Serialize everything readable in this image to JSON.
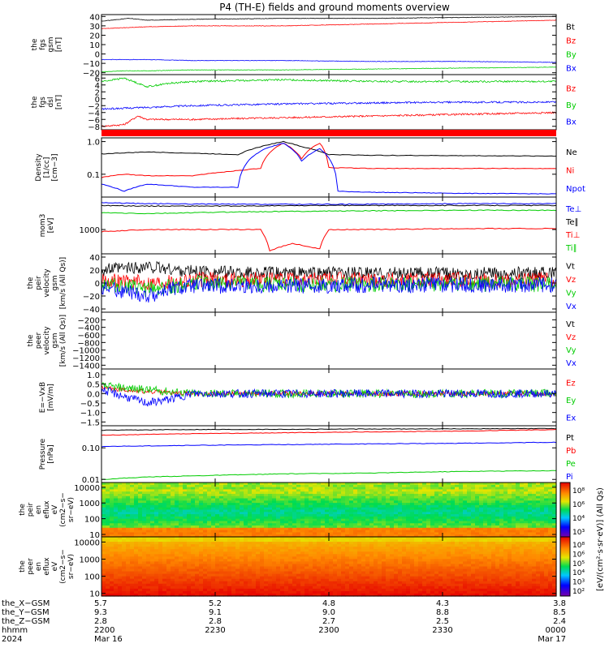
{
  "title": "P4 (TH-E) fields and ground moments overview",
  "colors": {
    "black": "#000000",
    "red": "#ff0000",
    "green": "#00cc00",
    "blue": "#0000ff"
  },
  "chart_data": [
    {
      "id": "fgs-gsm",
      "type": "line",
      "ylabel_lines": [
        "the",
        "fgs",
        "gsm",
        "[nT]"
      ],
      "ylim": [
        -22,
        42
      ],
      "yticks": [
        "40",
        "30",
        "20",
        "10",
        "0",
        "−10",
        "−20"
      ],
      "ytick_values": [
        40,
        30,
        20,
        10,
        0,
        -10,
        -20
      ],
      "series": [
        {
          "name": "Bt",
          "color": "black",
          "x": [
            0,
            0.02,
            0.06,
            0.1,
            0.2,
            0.4,
            0.6,
            0.8,
            1.0
          ],
          "y": [
            35,
            36,
            38,
            36,
            37,
            38,
            38,
            39,
            40
          ]
        },
        {
          "name": "Bz",
          "color": "red",
          "x": [
            0,
            0.05,
            0.1,
            0.2,
            0.4,
            0.6,
            0.8,
            1.0
          ],
          "y": [
            27,
            28,
            29,
            30,
            30,
            32,
            34,
            36
          ]
        },
        {
          "name": "By",
          "color": "green",
          "x": [
            0,
            0.05,
            0.1,
            0.2,
            0.4,
            0.6,
            0.8,
            1.0
          ],
          "y": [
            -19,
            -18,
            -18,
            -17,
            -17,
            -16,
            -15,
            -14
          ]
        },
        {
          "name": "Bx",
          "color": "blue",
          "x": [
            0,
            0.1,
            0.2,
            0.4,
            0.6,
            0.8,
            1.0
          ],
          "y": [
            -6,
            -6,
            -7,
            -7,
            -8,
            -8,
            -9
          ]
        }
      ]
    },
    {
      "id": "fgs-dsl",
      "type": "line",
      "ylabel_lines": [
        "the",
        "fgs",
        "dsl",
        "[nT]"
      ],
      "ylim": [
        -9,
        7
      ],
      "yticks": [
        "6",
        "4",
        "2",
        "0",
        "−2",
        "−4",
        "−6",
        "−8"
      ],
      "ytick_values": [
        6,
        4,
        2,
        0,
        -2,
        -4,
        -6,
        -8
      ],
      "series": [
        {
          "name": "Bz",
          "color": "red",
          "x": [
            0,
            0.05,
            0.08,
            0.1,
            0.2,
            0.4,
            0.6,
            0.8,
            1.0
          ],
          "y": [
            -8,
            -7.5,
            -5,
            -6,
            -6,
            -5.5,
            -5,
            -4.5,
            -4
          ]
        },
        {
          "name": "By",
          "color": "green",
          "x": [
            0,
            0.05,
            0.1,
            0.15,
            0.2,
            0.4,
            0.6,
            0.8,
            1.0
          ],
          "y": [
            5,
            6,
            3.5,
            4.5,
            5,
            5.5,
            5,
            5,
            5
          ]
        },
        {
          "name": "Bx",
          "color": "blue",
          "x": [
            0,
            0.1,
            0.2,
            0.4,
            0.6,
            0.8,
            1.0
          ],
          "y": [
            -3,
            -2.5,
            -2,
            -1.5,
            -1.2,
            -1,
            -1
          ]
        }
      ]
    },
    {
      "id": "density",
      "type": "line",
      "log_y": true,
      "ylabel_lines": [
        "Density",
        "[1/cc]",
        "[cm−3]"
      ],
      "ylim": [
        0.02,
        1.3
      ],
      "yticks": [
        "1.0",
        "0.1"
      ],
      "ytick_values": [
        1.0,
        0.1
      ],
      "series": [
        {
          "name": "Ne",
          "color": "black",
          "x": [
            0,
            0.1,
            0.2,
            0.3,
            0.35,
            0.4,
            0.44,
            0.48,
            0.5,
            0.6,
            0.8,
            1.0
          ],
          "y": [
            0.42,
            0.48,
            0.44,
            0.4,
            0.7,
            1.0,
            0.7,
            0.5,
            0.4,
            0.38,
            0.37,
            0.36
          ]
        },
        {
          "name": "Ni",
          "color": "red",
          "x": [
            0,
            0.05,
            0.1,
            0.2,
            0.35,
            0.4,
            0.44,
            0.48,
            0.5,
            0.6,
            0.8,
            1.0
          ],
          "y": [
            0.08,
            0.1,
            0.09,
            0.09,
            0.15,
            0.9,
            0.3,
            0.9,
            0.16,
            0.15,
            0.15,
            0.15
          ]
        },
        {
          "name": "Npot",
          "color": "blue",
          "x": [
            0,
            0.05,
            0.1,
            0.2,
            0.3,
            0.36,
            0.4,
            0.44,
            0.48,
            0.52,
            0.6,
            0.8,
            1.0
          ],
          "y": [
            0.05,
            0.03,
            0.05,
            0.04,
            0.04,
            0.6,
            0.9,
            0.25,
            0.6,
            0.03,
            0.028,
            0.026,
            0.025
          ]
        }
      ]
    },
    {
      "id": "temperature",
      "type": "line",
      "log_y": true,
      "ylabel_lines": [
        "mom3",
        "[eV]"
      ],
      "ylim": [
        300,
        5000
      ],
      "yticks": [
        "1000"
      ],
      "ytick_values": [
        1000
      ],
      "series": [
        {
          "name": "Te⊥",
          "color": "blue",
          "x": [
            0,
            0.1,
            0.3,
            0.5,
            0.8,
            1.0
          ],
          "y": [
            3800,
            3600,
            3500,
            3500,
            3600,
            3600
          ]
        },
        {
          "name": "Te∥",
          "color": "black",
          "x": [
            0,
            0.1,
            0.3,
            0.5,
            0.8,
            1.0
          ],
          "y": [
            3300,
            3200,
            3200,
            3300,
            3300,
            3300
          ]
        },
        {
          "name": "Ti⊥",
          "color": "red",
          "x": [
            0,
            0.1,
            0.35,
            0.37,
            0.42,
            0.48,
            0.5,
            0.6,
            0.8,
            1.0
          ],
          "y": [
            900,
            1000,
            1000,
            350,
            500,
            380,
            1000,
            1000,
            1050,
            1050
          ]
        },
        {
          "name": "Ti∥",
          "color": "green",
          "x": [
            0,
            0.1,
            0.3,
            0.5,
            0.8,
            1.0
          ],
          "y": [
            2300,
            2200,
            2400,
            2500,
            2600,
            2600
          ]
        }
      ]
    },
    {
      "id": "velocity-gsm",
      "type": "line",
      "ylabel_lines": [
        "the",
        "peir",
        "velocity",
        "gsm",
        "[km/s (All Qs)]"
      ],
      "ylim": [
        -45,
        45
      ],
      "yticks": [
        "40",
        "20",
        "0",
        "−20",
        "−40"
      ],
      "ytick_values": [
        40,
        20,
        0,
        -20,
        -40
      ],
      "series": [
        {
          "name": "Vt",
          "color": "black",
          "x": [
            0,
            0.1,
            0.2,
            0.4,
            0.6,
            0.8,
            1.0
          ],
          "y": [
            20,
            25,
            18,
            15,
            15,
            15,
            15
          ]
        },
        {
          "name": "Vz",
          "color": "red",
          "x": [
            0,
            0.1,
            0.2,
            0.4,
            0.6,
            0.8,
            1.0
          ],
          "y": [
            5,
            0,
            5,
            5,
            5,
            5,
            5
          ]
        },
        {
          "name": "Vy",
          "color": "green",
          "x": [
            0,
            0.1,
            0.2,
            0.4,
            0.6,
            0.8,
            1.0
          ],
          "y": [
            0,
            -10,
            0,
            -2,
            -3,
            -2,
            -2
          ]
        },
        {
          "name": "Vx",
          "color": "blue",
          "x": [
            0,
            0.1,
            0.15,
            0.2,
            0.4,
            0.6,
            0.8,
            1.0
          ],
          "y": [
            -5,
            -20,
            -10,
            -5,
            -5,
            -3,
            -3,
            -3
          ]
        }
      ]
    },
    {
      "id": "velocity-empty",
      "type": "line",
      "ylabel_lines": [
        "the",
        "peer",
        "velocity",
        "gsm",
        "[km/s (All Qs)]"
      ],
      "ylim": [
        -1500,
        0
      ],
      "yticks": [
        "−200",
        "−400",
        "−600",
        "−800",
        "−1000",
        "−1200",
        "−1400"
      ],
      "ytick_values": [
        -200,
        -400,
        -600,
        -800,
        -1000,
        -1200,
        -1400
      ],
      "series": [
        {
          "name": "Vt",
          "color": "black",
          "x": [],
          "y": []
        },
        {
          "name": "Vz",
          "color": "red",
          "x": [],
          "y": []
        },
        {
          "name": "Vy",
          "color": "green",
          "x": [],
          "y": []
        },
        {
          "name": "Vx",
          "color": "blue",
          "x": [],
          "y": []
        }
      ]
    },
    {
      "id": "efield",
      "type": "line",
      "ylabel_lines": [
        "E=−VxB",
        "[mV/m]"
      ],
      "ylim": [
        -1.7,
        1.3
      ],
      "yticks": [
        "1.0",
        "0.5",
        "0.0",
        "−0.5",
        "−1.0",
        "−1.5"
      ],
      "ytick_values": [
        1.0,
        0.5,
        0.0,
        -0.5,
        -1.0,
        -1.5
      ],
      "series": [
        {
          "name": "Ez",
          "color": "red",
          "x": [
            0,
            0.1,
            0.2,
            0.4,
            0.6,
            0.8,
            1.0
          ],
          "y": [
            0.3,
            0.1,
            0.0,
            0.0,
            0.0,
            0.0,
            0.0
          ]
        },
        {
          "name": "Ey",
          "color": "green",
          "x": [
            0,
            0.1,
            0.2,
            0.4,
            0.6,
            0.8,
            1.0
          ],
          "y": [
            0.4,
            0.2,
            0.0,
            0.0,
            0.0,
            0.0,
            0.0
          ]
        },
        {
          "name": "Ex",
          "color": "blue",
          "x": [
            0,
            0.1,
            0.15,
            0.2,
            0.4,
            0.6,
            0.8,
            1.0
          ],
          "y": [
            0.2,
            -0.5,
            -0.3,
            0.0,
            0.0,
            0.0,
            0.0,
            0.0
          ]
        }
      ]
    },
    {
      "id": "pressure",
      "type": "line",
      "log_y": true,
      "ylabel_lines": [
        "Pressure",
        "[nPa]"
      ],
      "ylim": [
        0.008,
        0.5
      ],
      "yticks": [
        "0.10",
        "0.01"
      ],
      "ytick_values": [
        0.1,
        0.01
      ],
      "series": [
        {
          "name": "Pt",
          "color": "black",
          "x": [
            0,
            0.2,
            0.5,
            0.8,
            1.0
          ],
          "y": [
            0.36,
            0.38,
            0.39,
            0.4,
            0.41
          ]
        },
        {
          "name": "Pb",
          "color": "red",
          "x": [
            0,
            0.2,
            0.5,
            0.8,
            1.0
          ],
          "y": [
            0.25,
            0.28,
            0.31,
            0.34,
            0.38
          ]
        },
        {
          "name": "Pe",
          "color": "green",
          "x": [
            0,
            0.1,
            0.2,
            0.4,
            0.6,
            0.8,
            1.0
          ],
          "y": [
            0.01,
            0.012,
            0.013,
            0.015,
            0.016,
            0.018,
            0.019
          ]
        },
        {
          "name": "Pi",
          "color": "blue",
          "x": [
            0,
            0.2,
            0.5,
            0.8,
            1.0
          ],
          "y": [
            0.11,
            0.12,
            0.13,
            0.14,
            0.15
          ]
        }
      ]
    },
    {
      "id": "peir-spec",
      "type": "heatmap",
      "log_y": true,
      "ylabel_lines": [
        "the",
        "peir",
        "en",
        "eflux",
        "eV",
        "(cm2−s−",
        "sr−eV)"
      ],
      "ylim": [
        7,
        20000
      ],
      "yticks": [
        "10000",
        "1000",
        "100",
        "10"
      ],
      "ytick_values": [
        10000,
        1000,
        100,
        10
      ]
    },
    {
      "id": "peer-spec",
      "type": "heatmap",
      "log_y": true,
      "ylabel_lines": [
        "the",
        "peer",
        "en",
        "eflux",
        "eV",
        "(cm2−s−",
        "sr−eV)"
      ],
      "ylim": [
        7,
        20000
      ],
      "yticks": [
        "10000",
        "1000",
        "100",
        "10"
      ],
      "ytick_values": [
        10000,
        1000,
        100,
        10
      ]
    }
  ],
  "colorbars": [
    {
      "ticks": [
        "10⁸",
        "10⁶",
        "10⁴",
        "10³"
      ]
    },
    {
      "ticks": [
        "10⁸",
        "10⁶",
        "10⁵",
        "10⁴",
        "10³",
        "10²"
      ]
    }
  ],
  "colorbar_label": "[eV/(cm²·s·sr·eV)] (All Qs)",
  "x_axis": {
    "label_rows": [
      {
        "label": "the_X−GSM",
        "values": [
          "5.7",
          "5.2",
          "4.8",
          "4.3",
          "3.8"
        ]
      },
      {
        "label": "the_Y−GSM",
        "values": [
          "9.3",
          "9.1",
          "9.0",
          "8.8",
          "8.5"
        ]
      },
      {
        "label": "the_Z−GSM",
        "values": [
          "2.8",
          "2.8",
          "2.7",
          "2.5",
          "2.4"
        ]
      },
      {
        "label": "hhmm",
        "values": [
          "2200",
          "2230",
          "2300",
          "2330",
          "0000"
        ]
      },
      {
        "label": "2024",
        "values": [
          "Mar 16",
          "",
          "",
          "",
          "Mar 17"
        ]
      }
    ]
  }
}
